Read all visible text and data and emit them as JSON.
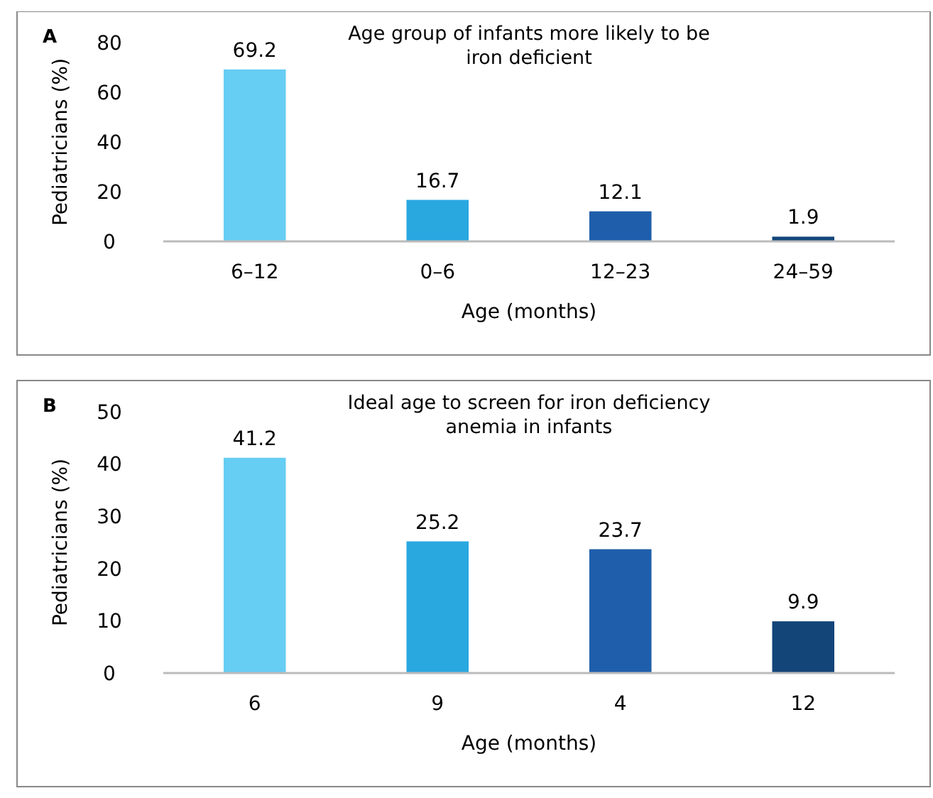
{
  "chart_data": [
    {
      "type": "bar",
      "title": "Age group of infants more likely to be iron deficient",
      "xlabel": "Age (months)",
      "ylabel": "Pediatricians (%)",
      "annotations": [
        "A"
      ],
      "categories": [
        "6–12",
        "0–6",
        "12–23",
        "24–59"
      ],
      "values": [
        69.2,
        16.7,
        12.1,
        1.9
      ],
      "colors": [
        "#66cdf3",
        "#29a8e0",
        "#1f5eab",
        "#134579"
      ],
      "ylim": [
        0,
        80
      ],
      "yticks": [
        0,
        20,
        40,
        60,
        80
      ],
      "data_labels": true,
      "grid": false
    },
    {
      "type": "bar",
      "title": "Ideal age to screen for iron deficiency anemia in infants",
      "xlabel": "Age (months)",
      "ylabel": "Pediatricians (%)",
      "annotations": [
        "B"
      ],
      "categories": [
        "6",
        "9",
        "4",
        "12"
      ],
      "values": [
        41.2,
        25.2,
        23.7,
        9.9
      ],
      "colors": [
        "#66cdf3",
        "#29a8e0",
        "#1f5eab",
        "#134579"
      ],
      "ylim": [
        0,
        50
      ],
      "yticks": [
        0,
        10,
        20,
        30,
        40,
        50
      ],
      "data_labels": true,
      "grid": false
    }
  ]
}
